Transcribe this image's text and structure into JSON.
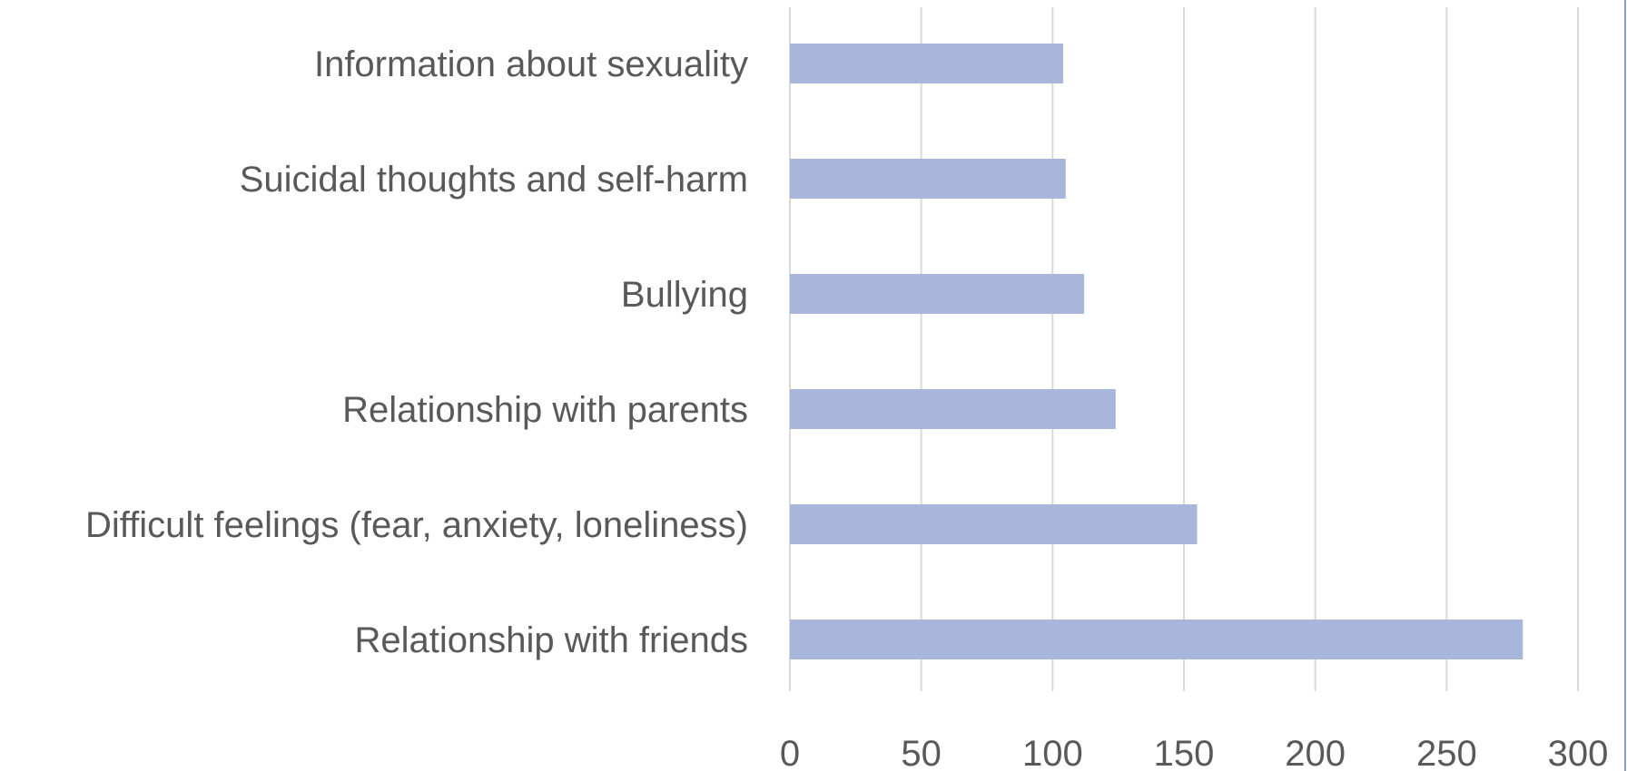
{
  "chart_data": {
    "type": "bar",
    "orientation": "horizontal",
    "title": "",
    "xlabel": "",
    "ylabel": "",
    "categories": [
      "Information about sexuality",
      "Suicidal thoughts and self-harm",
      "Bullying",
      "Relationship with parents",
      "Difficult feelings (fear, anxiety, loneliness)",
      "Relationship with friends"
    ],
    "values": [
      104,
      105,
      112,
      124,
      155,
      279
    ],
    "xlim": [
      0,
      300
    ],
    "xticks": [
      0,
      50,
      100,
      150,
      200,
      250,
      300
    ],
    "grid": true,
    "legend": "none",
    "bar_color": "#a9b6dc",
    "text_color": "#595959",
    "grid_color": "#d9d9d9"
  }
}
